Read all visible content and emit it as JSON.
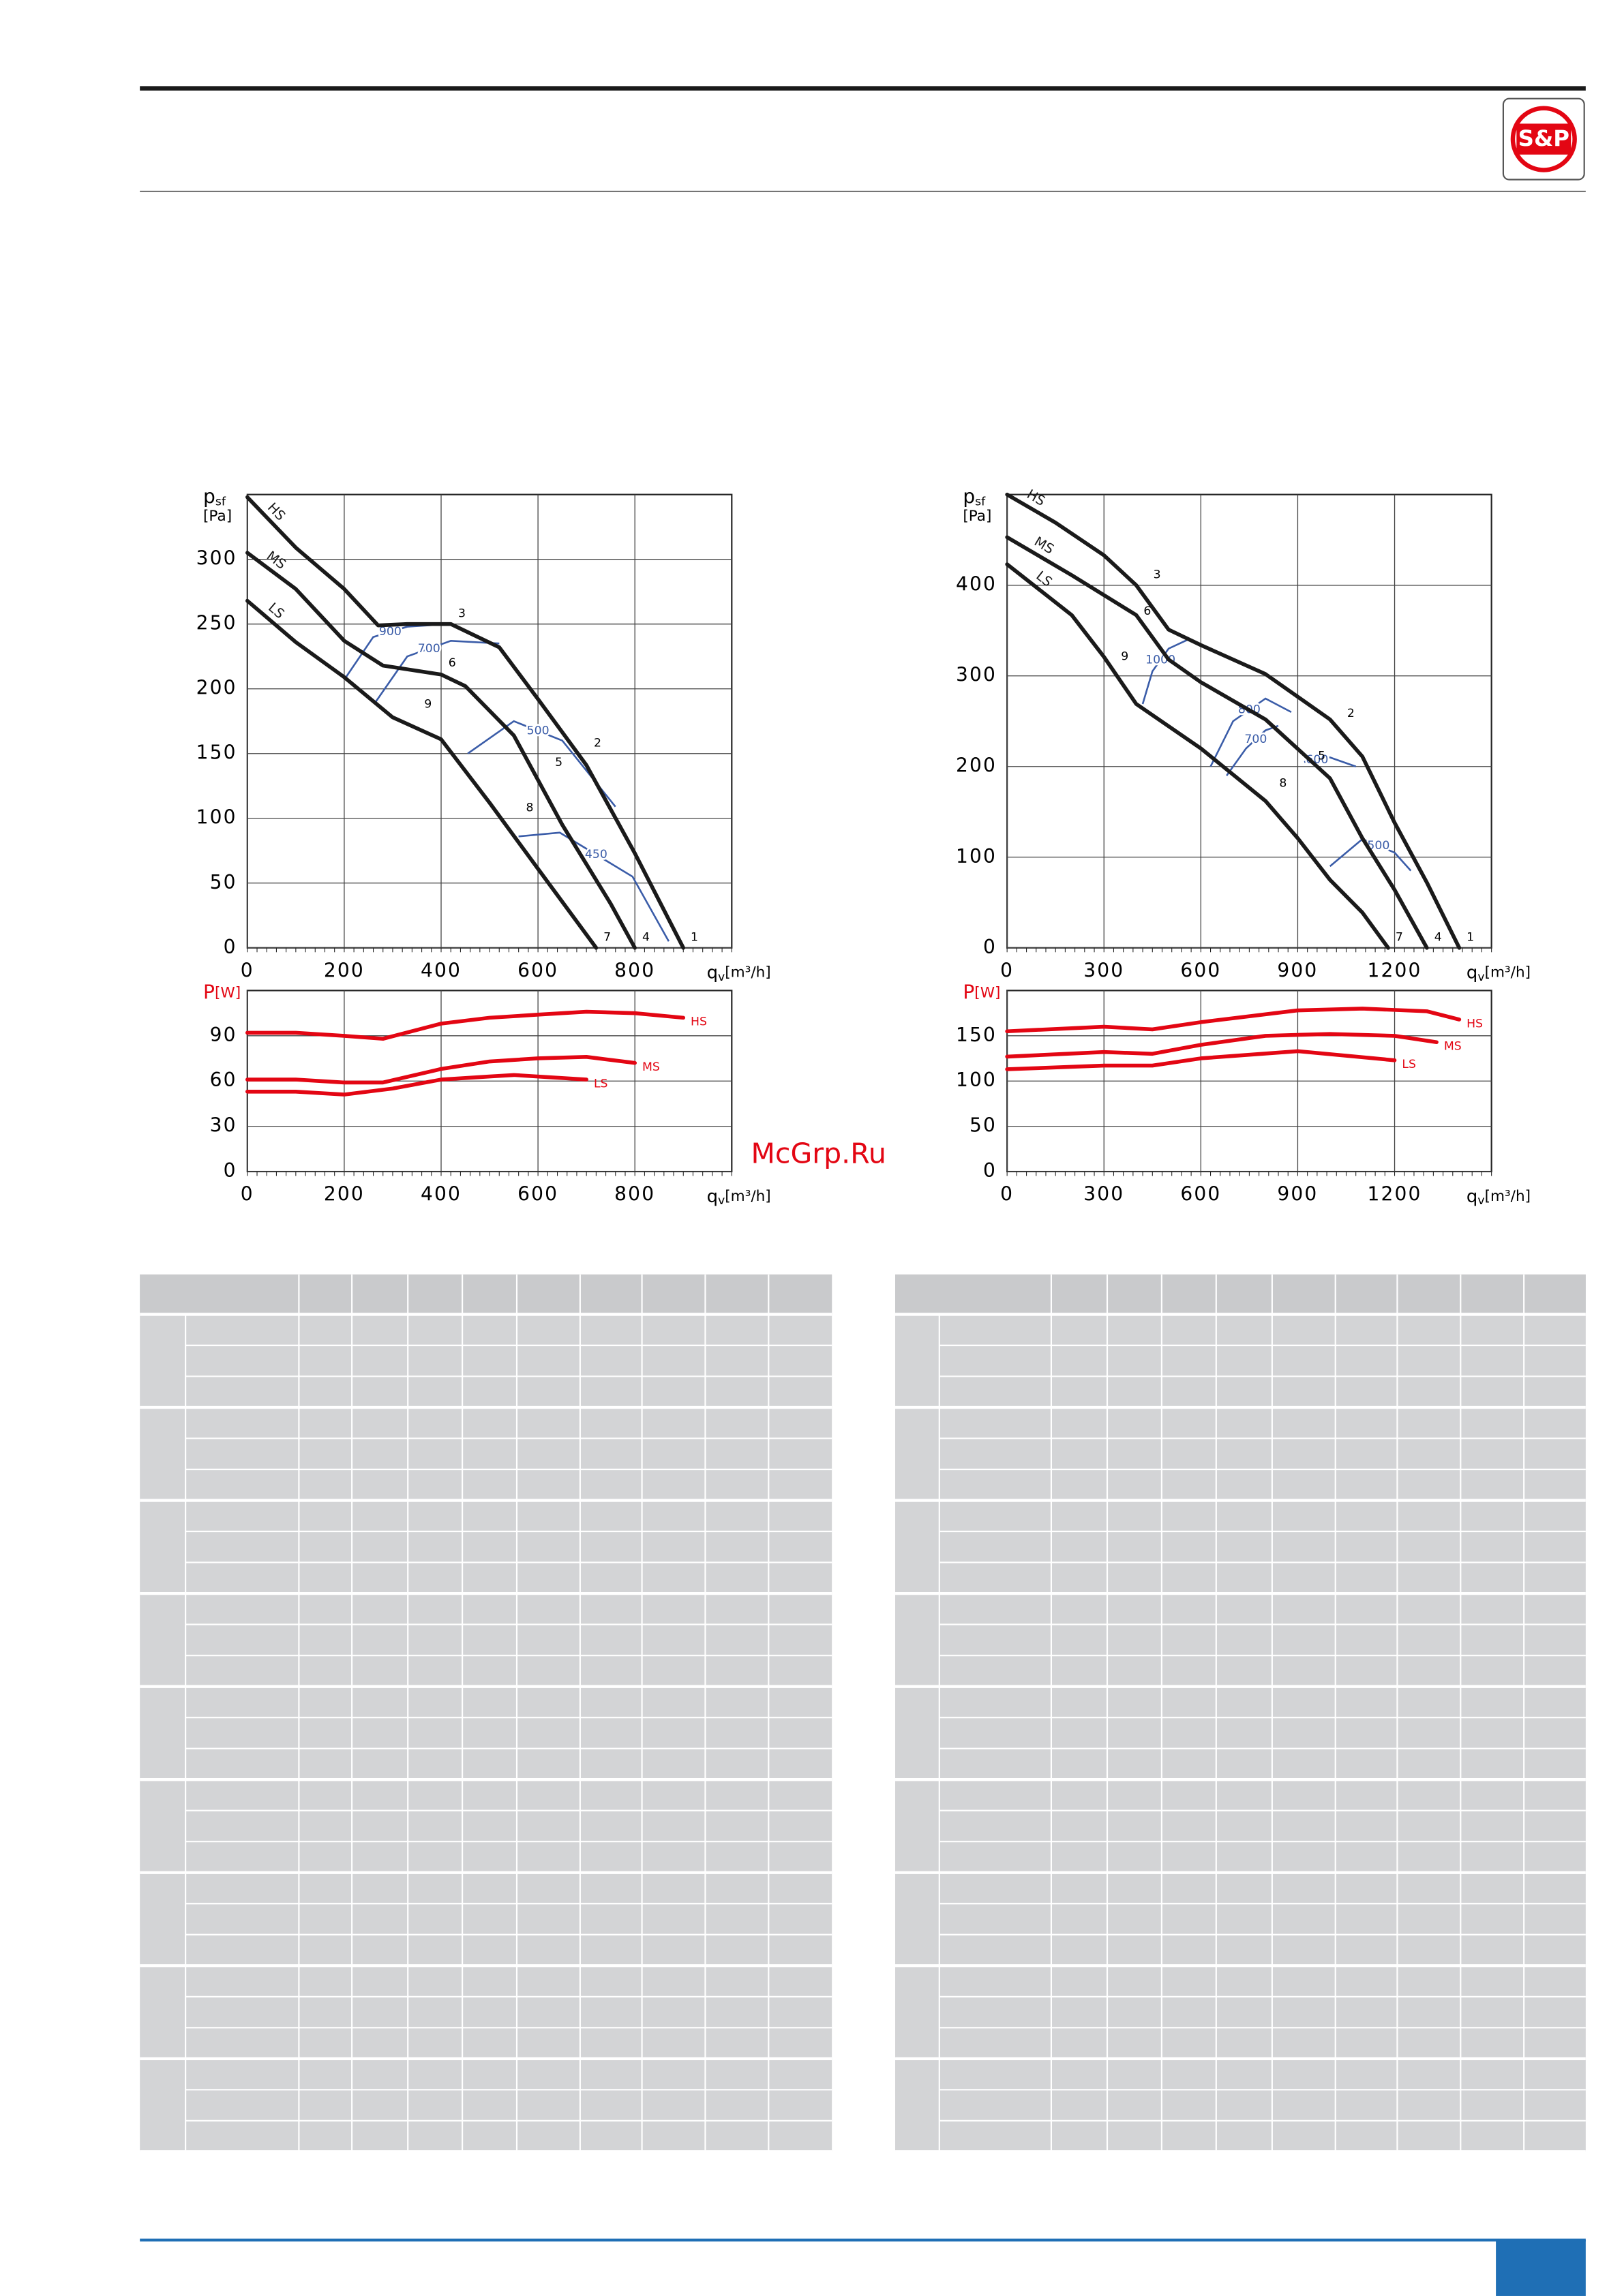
{
  "logo": "S&P",
  "watermark": "McGrp.Ru",
  "chart_data": [
    {
      "type": "line",
      "x_label": {
        "symbol": "q",
        "subscript": "v",
        "unit": "[m³/h]"
      },
      "y_label": {
        "symbol": "p",
        "subscript": "sf",
        "unit": "[Pa]"
      },
      "label_color": "#000000",
      "xlim": [
        0,
        1000
      ],
      "xticks": [
        0,
        200,
        400,
        600,
        800
      ],
      "ylim": [
        0,
        350
      ],
      "yticks": [
        0,
        50,
        100,
        150,
        200,
        250,
        300
      ],
      "grid": true,
      "series_label_position": "start",
      "series": [
        {
          "name": "HS",
          "color": "#1a1a1a",
          "x": [
            0,
            100,
            200,
            270,
            330,
            420,
            520,
            600,
            700,
            800,
            900
          ],
          "values": [
            348,
            309,
            277,
            249,
            250,
            250,
            232,
            192,
            141,
            73,
            0
          ]
        },
        {
          "name": "MS",
          "color": "#1a1a1a",
          "x": [
            0,
            100,
            200,
            280,
            400,
            450,
            550,
            650,
            750,
            800
          ],
          "values": [
            305,
            277,
            237,
            218,
            211,
            202,
            164,
            95,
            34,
            0
          ]
        },
        {
          "name": "LS",
          "color": "#1a1a1a",
          "x": [
            0,
            100,
            200,
            300,
            400,
            500,
            600,
            720
          ],
          "values": [
            268,
            236,
            209,
            178,
            161,
            112,
            61,
            0
          ]
        }
      ],
      "iso_lines": [
        {
          "label": "900",
          "color": "#3a5ca8",
          "x": [
            200,
            260,
            330,
            415
          ],
          "values": [
            207,
            240,
            248,
            250
          ]
        },
        {
          "label": "700",
          "color": "#3a5ca8",
          "x": [
            265,
            330,
            420,
            520
          ],
          "values": [
            190,
            225,
            237,
            235
          ]
        },
        {
          "label": "500",
          "color": "#3a5ca8",
          "x": [
            455,
            550,
            650,
            760
          ],
          "values": [
            150,
            175,
            160,
            109
          ]
        },
        {
          "label": "450",
          "color": "#3a5ca8",
          "x": [
            560,
            645,
            795,
            870
          ],
          "values": [
            86,
            89,
            55,
            5
          ]
        }
      ],
      "points": [
        {
          "label": "1",
          "x": 900,
          "y": 0
        },
        {
          "label": "2",
          "x": 700,
          "y": 150
        },
        {
          "label": "3",
          "x": 420,
          "y": 250
        },
        {
          "label": "4",
          "x": 800,
          "y": 0
        },
        {
          "label": "5",
          "x": 620,
          "y": 135
        },
        {
          "label": "6",
          "x": 400,
          "y": 212
        },
        {
          "label": "7",
          "x": 720,
          "y": 0
        },
        {
          "label": "8",
          "x": 560,
          "y": 100
        },
        {
          "label": "9",
          "x": 350,
          "y": 180
        }
      ]
    },
    {
      "type": "line",
      "x_label": {
        "symbol": "q",
        "subscript": "v",
        "unit": "[m³/h]"
      },
      "y_label": {
        "symbol": "P",
        "unit": "[W]"
      },
      "label_color": "#e30613",
      "xlim": [
        0,
        1000
      ],
      "xticks": [
        0,
        200,
        400,
        600,
        800
      ],
      "ylim": [
        0,
        120
      ],
      "yticks": [
        0,
        30,
        60,
        90
      ],
      "grid": true,
      "series_label_position": "end",
      "series": [
        {
          "name": "HS",
          "color": "#e30613",
          "x": [
            0,
            100,
            200,
            280,
            400,
            500,
            600,
            700,
            800,
            900
          ],
          "values": [
            92,
            92,
            90,
            88,
            98,
            102,
            104,
            106,
            105,
            102
          ]
        },
        {
          "name": "MS",
          "color": "#e30613",
          "x": [
            0,
            100,
            200,
            280,
            400,
            500,
            600,
            700,
            800
          ],
          "values": [
            61,
            61,
            59,
            59,
            68,
            73,
            75,
            76,
            72
          ]
        },
        {
          "name": "LS",
          "color": "#e30613",
          "x": [
            0,
            100,
            200,
            300,
            400,
            500,
            550,
            700
          ],
          "values": [
            53,
            53,
            51,
            55,
            61,
            63,
            64,
            61
          ]
        }
      ]
    },
    {
      "type": "line",
      "x_label": {
        "symbol": "q",
        "subscript": "v",
        "unit": "[m³/h]"
      },
      "y_label": {
        "symbol": "p",
        "subscript": "sf",
        "unit": "[Pa]"
      },
      "label_color": "#000000",
      "xlim": [
        0,
        1500
      ],
      "xticks": [
        0,
        300,
        600,
        900,
        1200
      ],
      "ylim": [
        0,
        500
      ],
      "yticks": [
        0,
        100,
        200,
        300,
        400
      ],
      "grid": true,
      "series_label_position": "start",
      "series": [
        {
          "name": "HS",
          "color": "#1a1a1a",
          "x": [
            0,
            150,
            300,
            400,
            500,
            600,
            800,
            1000,
            1100,
            1200,
            1300,
            1400
          ],
          "values": [
            500,
            469,
            433,
            400,
            351,
            334,
            302,
            252,
            211,
            138,
            72,
            0
          ]
        },
        {
          "name": "MS",
          "color": "#1a1a1a",
          "x": [
            0,
            200,
            400,
            500,
            600,
            800,
            1000,
            1100,
            1200,
            1300
          ],
          "values": [
            453,
            411,
            367,
            318,
            293,
            252,
            187,
            121,
            64,
            0
          ]
        },
        {
          "name": "LS",
          "color": "#1a1a1a",
          "x": [
            0,
            200,
            300,
            400,
            600,
            800,
            900,
            1000,
            1100,
            1180
          ],
          "values": [
            423,
            367,
            321,
            269,
            220,
            162,
            121,
            75,
            39,
            0
          ]
        }
      ],
      "iso_lines": [
        {
          "label": "1000",
          "color": "#3a5ca8",
          "x": [
            420,
            450,
            500,
            560
          ],
          "values": [
            269,
            305,
            330,
            340
          ]
        },
        {
          "label": "800",
          "color": "#3a5ca8",
          "x": [
            630,
            700,
            800,
            880
          ],
          "values": [
            200,
            250,
            275,
            260
          ]
        },
        {
          "label": "700",
          "color": "#3a5ca8",
          "x": [
            680,
            740,
            800,
            840
          ],
          "values": [
            190,
            220,
            240,
            245
          ]
        },
        {
          "label": "600",
          "color": "#3a5ca8",
          "x": [
            920,
            1000,
            1080
          ],
          "values": [
            205,
            210,
            200
          ]
        },
        {
          "label": "500",
          "color": "#3a5ca8",
          "x": [
            1000,
            1100,
            1200,
            1250
          ],
          "values": [
            90,
            120,
            105,
            85
          ]
        }
      ],
      "points": [
        {
          "label": "1",
          "x": 1400,
          "y": 0
        },
        {
          "label": "2",
          "x": 1030,
          "y": 247
        },
        {
          "label": "3",
          "x": 430,
          "y": 400
        },
        {
          "label": "4",
          "x": 1300,
          "y": 0
        },
        {
          "label": "5",
          "x": 940,
          "y": 200
        },
        {
          "label": "6",
          "x": 400,
          "y": 360
        },
        {
          "label": "7",
          "x": 1180,
          "y": 0
        },
        {
          "label": "8",
          "x": 820,
          "y": 170
        },
        {
          "label": "9",
          "x": 330,
          "y": 310
        }
      ]
    },
    {
      "type": "line",
      "x_label": {
        "symbol": "q",
        "subscript": "v",
        "unit": "[m³/h]"
      },
      "y_label": {
        "symbol": "P",
        "unit": "[W]"
      },
      "label_color": "#e30613",
      "xlim": [
        0,
        1500
      ],
      "xticks": [
        0,
        300,
        600,
        900,
        1200
      ],
      "ylim": [
        0,
        200
      ],
      "yticks": [
        0,
        50,
        100,
        150
      ],
      "grid": true,
      "series_label_position": "end",
      "series": [
        {
          "name": "HS",
          "color": "#e30613",
          "x": [
            0,
            300,
            450,
            600,
            900,
            1100,
            1300,
            1400
          ],
          "values": [
            155,
            160,
            157,
            165,
            178,
            180,
            177,
            168
          ]
        },
        {
          "name": "MS",
          "color": "#e30613",
          "x": [
            0,
            300,
            450,
            600,
            800,
            1000,
            1200,
            1330
          ],
          "values": [
            127,
            132,
            130,
            140,
            150,
            152,
            150,
            143
          ]
        },
        {
          "name": "LS",
          "color": "#e30613",
          "x": [
            0,
            300,
            450,
            600,
            900,
            1200
          ],
          "values": [
            113,
            117,
            117,
            125,
            133,
            123
          ]
        }
      ]
    }
  ]
}
